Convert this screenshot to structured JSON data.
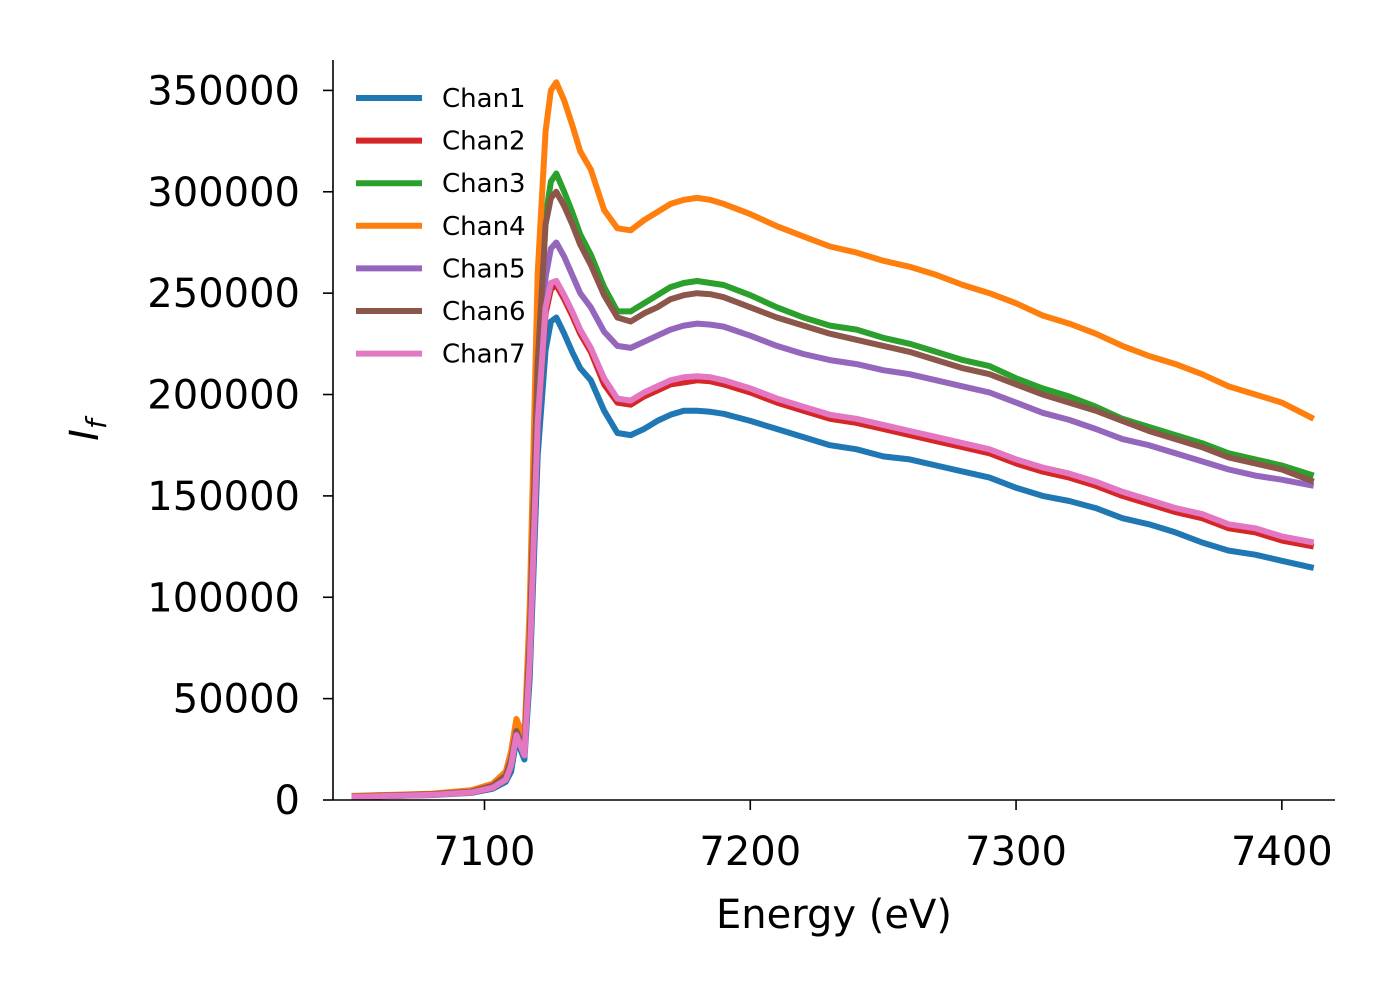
{
  "chart_data": {
    "type": "line",
    "title": "",
    "xlabel": "Energy (eV)",
    "ylabel": "I_f",
    "ylabel_main": "I",
    "ylabel_sub": "f",
    "xlim": [
      7043,
      7420
    ],
    "ylim": [
      0,
      365000
    ],
    "xticks": [
      7100,
      7200,
      7300,
      7400
    ],
    "yticks": [
      0,
      50000,
      100000,
      150000,
      200000,
      250000,
      300000,
      350000
    ],
    "grid": false,
    "legend_position": "top-left",
    "x": [
      7050,
      7080,
      7095,
      7103,
      7108,
      7110,
      7112,
      7115,
      7117,
      7120,
      7123,
      7125,
      7127,
      7130,
      7133,
      7136,
      7140,
      7145,
      7150,
      7155,
      7160,
      7165,
      7170,
      7175,
      7180,
      7185,
      7190,
      7200,
      7210,
      7220,
      7230,
      7240,
      7250,
      7260,
      7270,
      7280,
      7290,
      7300,
      7310,
      7320,
      7330,
      7340,
      7350,
      7360,
      7370,
      7380,
      7390,
      7400,
      7412
    ],
    "series": [
      {
        "name": "Chan1",
        "color": "#1f77b4",
        "values": [
          1500,
          2400,
          3500,
          5500,
          9000,
          14000,
          30000,
          20000,
          60000,
          170000,
          222000,
          236000,
          238000,
          230000,
          221000,
          213000,
          207000,
          192000,
          181000,
          180000,
          183000,
          187000,
          190000,
          192000,
          192000,
          191500,
          190500,
          187000,
          183000,
          179000,
          175000,
          173000,
          169500,
          168000,
          165000,
          162000,
          159000,
          154000,
          150000,
          147500,
          144000,
          139000,
          136000,
          132000,
          127000,
          123000,
          121000,
          118000,
          114500
        ]
      },
      {
        "name": "Chan2",
        "color": "#d62728",
        "values": [
          1600,
          2500,
          3700,
          6000,
          10000,
          17000,
          35000,
          24000,
          70000,
          185000,
          240000,
          252000,
          254000,
          247000,
          239000,
          230000,
          221000,
          205000,
          196000,
          195000,
          199000,
          202000,
          205000,
          206000,
          207000,
          206500,
          205000,
          201000,
          196000,
          192000,
          188000,
          186000,
          183000,
          180000,
          177000,
          174000,
          171000,
          166000,
          162000,
          159000,
          155000,
          150000,
          146000,
          142000,
          139000,
          134000,
          132000,
          128000,
          125000
        ]
      },
      {
        "name": "Chan3",
        "color": "#2ca02c",
        "values": [
          1800,
          2800,
          4200,
          7000,
          12000,
          20000,
          38000,
          26000,
          80000,
          220000,
          288000,
          305000,
          309000,
          300000,
          290000,
          279000,
          269000,
          253000,
          241000,
          241000,
          245000,
          249000,
          253000,
          255000,
          256000,
          255000,
          254000,
          249000,
          243000,
          238000,
          234000,
          232000,
          228000,
          225000,
          221000,
          217000,
          214000,
          208000,
          203000,
          199000,
          194000,
          188000,
          184000,
          180000,
          176000,
          171000,
          168000,
          165000,
          160000
        ]
      },
      {
        "name": "Chan4",
        "color": "#ff7f0e",
        "values": [
          2000,
          3100,
          4800,
          8000,
          14000,
          24000,
          40000,
          30000,
          95000,
          260000,
          330000,
          350000,
          354000,
          345000,
          333000,
          320000,
          311000,
          291000,
          282000,
          281000,
          286000,
          290000,
          294000,
          296000,
          297000,
          296000,
          294000,
          289000,
          283000,
          278000,
          273000,
          270000,
          266000,
          263000,
          259000,
          254000,
          250000,
          245000,
          239000,
          235000,
          230000,
          224000,
          219000,
          215000,
          210000,
          204000,
          200000,
          196000,
          188000
        ]
      },
      {
        "name": "Chan5",
        "color": "#9467bd",
        "values": [
          1700,
          2700,
          4000,
          6800,
          11000,
          19000,
          34000,
          24000,
          76000,
          205000,
          258000,
          272000,
          275000,
          268000,
          259000,
          250000,
          243000,
          231000,
          224000,
          223000,
          226000,
          229000,
          232000,
          234000,
          235000,
          234500,
          233500,
          229000,
          224000,
          220000,
          217000,
          215000,
          212000,
          210000,
          207000,
          204000,
          201000,
          196000,
          191000,
          187500,
          183000,
          178000,
          175000,
          171000,
          167000,
          163000,
          160000,
          158000,
          155000
        ]
      },
      {
        "name": "Chan6",
        "color": "#8c564b",
        "values": [
          1800,
          2800,
          4100,
          7000,
          12000,
          20000,
          34000,
          25000,
          78000,
          215000,
          284000,
          297000,
          300000,
          293000,
          284000,
          274000,
          264000,
          249000,
          238000,
          236000,
          240000,
          243000,
          247000,
          249000,
          250000,
          249500,
          248000,
          243000,
          238000,
          234000,
          230000,
          227000,
          224000,
          221000,
          217000,
          213000,
          210000,
          205000,
          200000,
          196000,
          192000,
          187000,
          182000,
          178000,
          174000,
          169000,
          166000,
          163000,
          157000
        ]
      },
      {
        "name": "Chan7",
        "color": "#e377c2",
        "values": [
          1600,
          2500,
          3700,
          6000,
          10000,
          17000,
          32000,
          22000,
          68000,
          186000,
          243000,
          255000,
          256000,
          249000,
          241000,
          232000,
          223000,
          208000,
          198000,
          197000,
          201000,
          204000,
          207000,
          208500,
          209000,
          208500,
          207000,
          203000,
          198000,
          194000,
          190000,
          188000,
          185000,
          182000,
          179000,
          176000,
          173000,
          168000,
          164000,
          161000,
          157000,
          152000,
          148000,
          144000,
          141000,
          136000,
          134000,
          130000,
          127000
        ]
      }
    ]
  }
}
